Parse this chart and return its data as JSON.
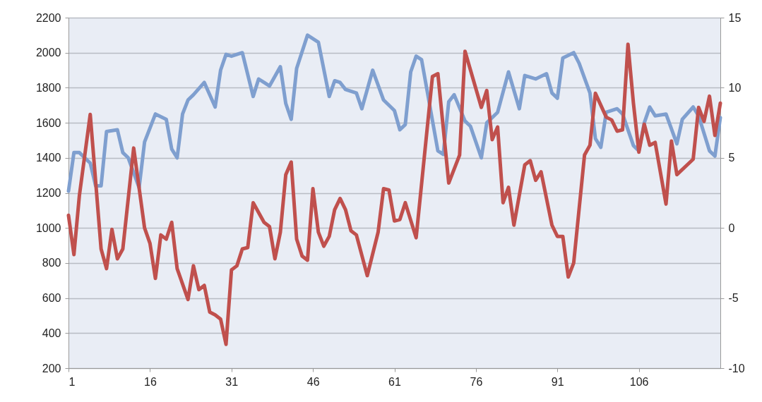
{
  "chart_data": {
    "type": "line",
    "xlim": [
      1,
      121
    ],
    "xticks": [
      1,
      16,
      31,
      46,
      61,
      76,
      91,
      106
    ],
    "ylim": [
      200,
      2200
    ],
    "yticks": [
      200,
      400,
      600,
      800,
      1000,
      1200,
      1400,
      1600,
      1800,
      2000,
      2200
    ],
    "y2lim": [
      -10,
      15
    ],
    "y2ticks": [
      -10,
      -5,
      0,
      5,
      10,
      15
    ],
    "grid": "y",
    "series": [
      {
        "color": "#7f9fcf",
        "x": [
          1,
          2,
          3,
          5,
          6,
          7,
          8,
          10,
          11,
          12,
          14,
          15,
          17,
          19,
          20,
          21,
          22,
          23,
          24,
          26,
          28,
          29,
          30,
          31,
          33,
          35,
          36,
          37,
          38,
          40,
          41,
          42,
          43,
          45,
          47,
          49,
          50,
          51,
          52,
          54,
          55,
          57,
          59,
          61,
          62,
          63,
          64,
          65,
          66,
          69,
          70,
          71,
          72,
          74,
          75,
          77,
          78,
          80,
          82,
          84,
          85,
          87,
          89,
          90,
          91,
          92,
          94,
          95,
          97,
          98,
          99,
          100,
          101,
          102,
          103,
          105,
          106,
          107,
          108,
          109,
          111,
          113,
          114,
          116,
          117,
          119,
          120,
          121
        ],
        "values": [
          1210,
          1430,
          1430,
          1370,
          1240,
          1240,
          1550,
          1560,
          1430,
          1400,
          1230,
          1490,
          1650,
          1620,
          1450,
          1400,
          1650,
          1730,
          1760,
          1830,
          1690,
          1900,
          1990,
          1980,
          2000,
          1750,
          1850,
          1830,
          1810,
          1920,
          1710,
          1620,
          1910,
          2100,
          2060,
          1750,
          1840,
          1830,
          1790,
          1770,
          1680,
          1900,
          1730,
          1670,
          1560,
          1590,
          1890,
          1980,
          1960,
          1440,
          1420,
          1720,
          1760,
          1610,
          1580,
          1400,
          1600,
          1660,
          1890,
          1680,
          1870,
          1850,
          1880,
          1770,
          1740,
          1970,
          2000,
          1940,
          1770,
          1510,
          1460,
          1660,
          1670,
          1680,
          1650,
          1470,
          1440,
          1600,
          1690,
          1640,
          1650,
          1480,
          1620,
          1690,
          1640,
          1440,
          1410,
          1630
        ]
      },
      {
        "color": "#c0504d",
        "axis": "y2",
        "x": [
          1,
          2,
          3,
          5,
          7,
          8,
          9,
          10,
          11,
          13,
          15,
          16,
          17,
          18,
          19,
          20,
          21,
          23,
          24,
          25,
          26,
          27,
          28,
          29,
          30,
          31,
          32,
          33,
          34,
          35,
          37,
          38,
          39,
          40,
          41,
          42,
          43,
          44,
          45,
          46,
          47,
          48,
          49,
          50,
          51,
          52,
          53,
          54,
          56,
          58,
          59,
          60,
          61,
          62,
          63,
          65,
          68,
          69,
          71,
          73,
          74,
          77,
          78,
          79,
          80,
          81,
          82,
          83,
          85,
          86,
          87,
          88,
          90,
          91,
          92,
          93,
          94,
          96,
          97,
          98,
          100,
          101,
          102,
          103,
          104,
          105,
          106,
          107,
          108,
          109,
          111,
          112,
          113,
          116,
          117,
          118,
          119,
          120,
          121
        ],
        "values": [
          0.9,
          -1.9,
          2.3,
          8.1,
          -1.5,
          -2.9,
          -0.1,
          -2.2,
          -1.5,
          5.7,
          0.0,
          -1.1,
          -3.6,
          -0.5,
          -0.8,
          0.4,
          -2.9,
          -5.1,
          -2.7,
          -4.4,
          -4.1,
          -6.0,
          -6.2,
          -6.5,
          -8.3,
          -3.0,
          -2.7,
          -1.5,
          -1.4,
          1.8,
          0.4,
          0.1,
          -2.2,
          -0.3,
          3.8,
          4.7,
          -0.8,
          -2.0,
          -2.3,
          2.8,
          -0.3,
          -1.3,
          -0.6,
          1.3,
          2.1,
          1.3,
          -0.2,
          -0.5,
          -3.4,
          -0.3,
          2.8,
          2.7,
          0.5,
          0.6,
          1.8,
          -0.7,
          10.8,
          11.0,
          3.2,
          5.2,
          12.6,
          8.6,
          9.8,
          6.3,
          7.2,
          1.8,
          2.9,
          0.2,
          4.5,
          4.8,
          3.4,
          4.0,
          0.2,
          -0.6,
          -0.6,
          -3.5,
          -2.5,
          5.2,
          5.9,
          9.6,
          7.9,
          7.7,
          6.9,
          7.0,
          13.1,
          8.9,
          5.4,
          7.4,
          5.9,
          6.1,
          1.7,
          6.2,
          3.8,
          4.9,
          8.6,
          7.6,
          9.4,
          6.6,
          8.9
        ]
      }
    ]
  }
}
